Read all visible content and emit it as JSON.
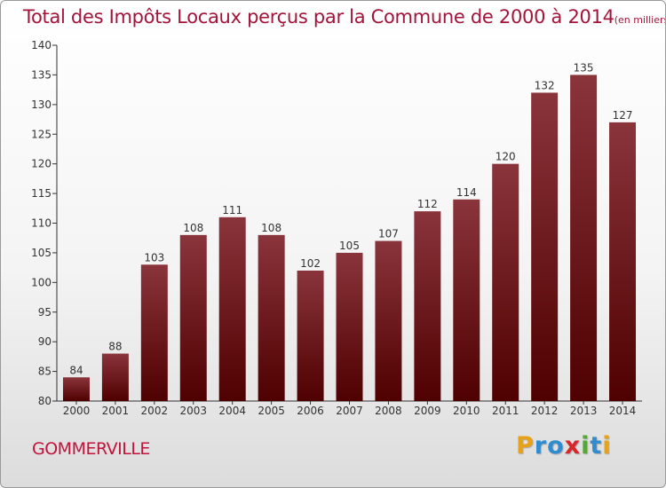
{
  "title": "Total des Impôts Locaux perçus par la Commune de 2000 à 2014",
  "unit_note": "(en milliers d'€)",
  "commune": "GOMMERVILLE",
  "logo": {
    "text": "Proxiti",
    "letters": [
      {
        "ch": "P",
        "color": "#e8a21a"
      },
      {
        "ch": "r",
        "color": "#2f8ccf"
      },
      {
        "ch": "o",
        "color": "#2f8ccf"
      },
      {
        "ch": "x",
        "color": "#d8262c"
      },
      {
        "ch": "i",
        "color": "#57a637"
      },
      {
        "ch": "t",
        "color": "#2f8ccf"
      },
      {
        "ch": "i",
        "color": "#e8a21a"
      }
    ]
  },
  "colors": {
    "bar_top": "#8a343b",
    "bar_bottom": "#4f0000",
    "text": "#a3143a",
    "axis": "#333333"
  },
  "chart_data": {
    "type": "bar",
    "title": "Total des Impôts Locaux perçus par la Commune de 2000 à 2014",
    "xlabel": "",
    "ylabel": "",
    "categories": [
      "2000",
      "2001",
      "2002",
      "2003",
      "2004",
      "2005",
      "2006",
      "2007",
      "2008",
      "2009",
      "2010",
      "2011",
      "2012",
      "2013",
      "2014"
    ],
    "values": [
      84,
      88,
      103,
      108,
      111,
      108,
      102,
      105,
      107,
      112,
      114,
      120,
      132,
      135,
      127
    ],
    "ylim": [
      80,
      140
    ],
    "yticks": [
      80,
      85,
      90,
      95,
      100,
      105,
      110,
      115,
      120,
      125,
      130,
      135,
      140
    ],
    "grid": false
  }
}
